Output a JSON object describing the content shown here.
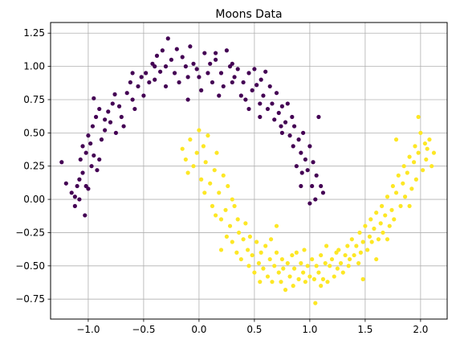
{
  "chart_data": {
    "type": "scatter",
    "title": "Moons Data",
    "xlabel": "",
    "ylabel": "",
    "xlim": [
      -1.34,
      2.24
    ],
    "ylim": [
      -0.9,
      1.33
    ],
    "x_ticks": [
      -1.0,
      -0.5,
      0.0,
      0.5,
      1.0,
      1.5,
      2.0
    ],
    "x_tick_labels": [
      "−1.0",
      "−0.5",
      "0.0",
      "0.5",
      "1.0",
      "1.5",
      "2.0"
    ],
    "y_ticks": [
      -0.75,
      -0.5,
      -0.25,
      0.0,
      0.25,
      0.5,
      0.75,
      1.0,
      1.25
    ],
    "y_tick_labels": [
      "−0.75",
      "−0.50",
      "−0.25",
      "0.00",
      "0.25",
      "0.50",
      "0.75",
      "1.00",
      "1.25"
    ],
    "grid": true,
    "legend": "none",
    "series": [
      {
        "color": "#440154",
        "points": [
          [
            -1.24,
            0.28
          ],
          [
            -1.2,
            0.12
          ],
          [
            -1.15,
            0.05
          ],
          [
            -1.12,
            0.02
          ],
          [
            -1.08,
            0.0
          ],
          [
            -1.12,
            -0.05
          ],
          [
            -1.02,
            0.1
          ],
          [
            -1.05,
            0.2
          ],
          [
            -1.1,
            0.1
          ],
          [
            -1.03,
            -0.12
          ],
          [
            -1.0,
            0.08
          ],
          [
            -1.07,
            0.3
          ],
          [
            -1.02,
            0.35
          ],
          [
            -0.98,
            0.42
          ],
          [
            -1.0,
            0.48
          ],
          [
            -0.95,
            0.33
          ],
          [
            -0.97,
            0.25
          ],
          [
            -1.05,
            0.4
          ],
          [
            -0.92,
            0.22
          ],
          [
            -0.9,
            0.3
          ],
          [
            -0.96,
            0.55
          ],
          [
            -0.93,
            0.62
          ],
          [
            -0.9,
            0.68
          ],
          [
            -0.95,
            0.76
          ],
          [
            -0.88,
            0.45
          ],
          [
            -0.85,
            0.52
          ],
          [
            -0.8,
            0.58
          ],
          [
            -0.82,
            0.66
          ],
          [
            -0.78,
            0.72
          ],
          [
            -0.76,
            0.79
          ],
          [
            -0.72,
            0.7
          ],
          [
            -0.7,
            0.62
          ],
          [
            -0.75,
            0.5
          ],
          [
            -0.68,
            0.55
          ],
          [
            -0.65,
            0.8
          ],
          [
            -0.62,
            0.88
          ],
          [
            -0.6,
            0.75
          ],
          [
            -0.58,
            0.68
          ],
          [
            -0.55,
            0.85
          ],
          [
            -0.52,
            0.92
          ],
          [
            -0.5,
            0.78
          ],
          [
            -0.48,
            0.95
          ],
          [
            -0.45,
            0.88
          ],
          [
            -0.42,
            1.02
          ],
          [
            -0.4,
            0.9
          ],
          [
            -0.38,
            1.08
          ],
          [
            -0.35,
            0.96
          ],
          [
            -0.33,
            1.12
          ],
          [
            -0.3,
            1.0
          ],
          [
            -0.28,
            1.21
          ],
          [
            -0.25,
            1.05
          ],
          [
            -0.22,
            0.95
          ],
          [
            -0.2,
            1.13
          ],
          [
            -0.18,
            0.88
          ],
          [
            -0.15,
            1.07
          ],
          [
            -0.12,
            1.0
          ],
          [
            -0.1,
            0.92
          ],
          [
            -0.08,
            1.15
          ],
          [
            -0.05,
            1.02
          ],
          [
            -0.02,
            0.98
          ],
          [
            0.0,
            0.92
          ],
          [
            0.02,
            0.82
          ],
          [
            0.05,
            1.1
          ],
          [
            0.08,
            0.95
          ],
          [
            0.1,
            1.02
          ],
          [
            0.12,
            0.88
          ],
          [
            0.15,
            1.05
          ],
          [
            0.18,
            0.78
          ],
          [
            0.2,
            0.95
          ],
          [
            0.22,
            0.85
          ],
          [
            0.25,
            1.12
          ],
          [
            0.28,
            1.0
          ],
          [
            0.3,
            0.88
          ],
          [
            0.32,
            0.92
          ],
          [
            0.35,
            0.98
          ],
          [
            0.38,
            0.78
          ],
          [
            0.4,
            0.88
          ],
          [
            0.42,
            0.75
          ],
          [
            0.45,
            0.95
          ],
          [
            0.48,
            0.82
          ],
          [
            0.5,
            0.98
          ],
          [
            0.52,
            0.86
          ],
          [
            0.55,
            0.72
          ],
          [
            0.56,
            0.9
          ],
          [
            0.58,
            0.78
          ],
          [
            0.6,
            0.96
          ],
          [
            0.62,
            0.68
          ],
          [
            0.64,
            0.85
          ],
          [
            0.66,
            0.72
          ],
          [
            0.68,
            0.6
          ],
          [
            0.7,
            0.8
          ],
          [
            0.72,
            0.65
          ],
          [
            0.74,
            0.55
          ],
          [
            0.75,
            0.7
          ],
          [
            0.78,
            0.58
          ],
          [
            0.8,
            0.72
          ],
          [
            0.82,
            0.48
          ],
          [
            0.84,
            0.62
          ],
          [
            0.85,
            0.4
          ],
          [
            0.86,
            0.55
          ],
          [
            0.88,
            0.25
          ],
          [
            0.9,
            0.45
          ],
          [
            0.92,
            0.35
          ],
          [
            0.93,
            0.2
          ],
          [
            0.94,
            0.5
          ],
          [
            0.96,
            0.3
          ],
          [
            0.98,
            0.22
          ],
          [
            1.0,
            0.4
          ],
          [
            1.02,
            0.1
          ],
          [
            1.03,
            0.28
          ],
          [
            1.05,
            0.0
          ],
          [
            1.06,
            0.18
          ],
          [
            1.08,
            0.62
          ],
          [
            1.1,
            0.1
          ],
          [
            1.12,
            0.05
          ],
          [
            -0.3,
            0.85
          ],
          [
            -0.1,
            0.75
          ],
          [
            0.3,
            1.02
          ],
          [
            0.55,
            0.62
          ],
          [
            -0.6,
            0.95
          ],
          [
            -0.85,
            0.6
          ],
          [
            -1.08,
            0.15
          ],
          [
            0.75,
            0.5
          ],
          [
            0.92,
            0.1
          ],
          [
            1.0,
            -0.03
          ],
          [
            -0.4,
            1.0
          ],
          [
            0.15,
            1.1
          ],
          [
            0.45,
            0.68
          ]
        ]
      },
      {
        "color": "#fde725",
        "points": [
          [
            -0.15,
            0.38
          ],
          [
            -0.12,
            0.3
          ],
          [
            -0.1,
            0.2
          ],
          [
            -0.08,
            0.45
          ],
          [
            -0.05,
            0.25
          ],
          [
            -0.02,
            0.35
          ],
          [
            0.0,
            0.52
          ],
          [
            0.02,
            0.15
          ],
          [
            0.04,
            0.4
          ],
          [
            0.05,
            0.05
          ],
          [
            0.06,
            0.28
          ],
          [
            0.08,
            0.48
          ],
          [
            0.1,
            0.12
          ],
          [
            0.12,
            -0.05
          ],
          [
            0.14,
            0.22
          ],
          [
            0.15,
            -0.12
          ],
          [
            0.16,
            0.35
          ],
          [
            0.18,
            0.05
          ],
          [
            0.2,
            -0.15
          ],
          [
            0.22,
            0.18
          ],
          [
            0.24,
            -0.08
          ],
          [
            0.25,
            -0.28
          ],
          [
            0.26,
            0.1
          ],
          [
            0.28,
            -0.2
          ],
          [
            0.3,
            -0.32
          ],
          [
            0.32,
            -0.05
          ],
          [
            0.34,
            -0.4
          ],
          [
            0.35,
            -0.15
          ],
          [
            0.36,
            -0.25
          ],
          [
            0.38,
            -0.45
          ],
          [
            0.4,
            -0.3
          ],
          [
            0.42,
            -0.18
          ],
          [
            0.44,
            -0.38
          ],
          [
            0.45,
            -0.5
          ],
          [
            0.46,
            -0.28
          ],
          [
            0.48,
            -0.42
          ],
          [
            0.5,
            -0.55
          ],
          [
            0.52,
            -0.32
          ],
          [
            0.54,
            -0.48
          ],
          [
            0.55,
            -0.62
          ],
          [
            0.56,
            -0.4
          ],
          [
            0.58,
            -0.52
          ],
          [
            0.6,
            -0.35
          ],
          [
            0.62,
            -0.58
          ],
          [
            0.64,
            -0.45
          ],
          [
            0.65,
            -0.3
          ],
          [
            0.66,
            -0.62
          ],
          [
            0.68,
            -0.5
          ],
          [
            0.7,
            -0.4
          ],
          [
            0.72,
            -0.55
          ],
          [
            0.74,
            -0.62
          ],
          [
            0.75,
            -0.45
          ],
          [
            0.76,
            -0.52
          ],
          [
            0.78,
            -0.68
          ],
          [
            0.8,
            -0.48
          ],
          [
            0.82,
            -0.58
          ],
          [
            0.84,
            -0.42
          ],
          [
            0.85,
            -0.65
          ],
          [
            0.86,
            -0.52
          ],
          [
            0.88,
            -0.4
          ],
          [
            0.9,
            -0.6
          ],
          [
            0.92,
            -0.48
          ],
          [
            0.94,
            -0.55
          ],
          [
            0.95,
            -0.38
          ],
          [
            0.96,
            -0.62
          ],
          [
            0.98,
            -0.5
          ],
          [
            1.0,
            -0.58
          ],
          [
            1.02,
            -0.45
          ],
          [
            1.04,
            -0.6
          ],
          [
            1.05,
            -0.78
          ],
          [
            1.06,
            -0.5
          ],
          [
            1.08,
            -0.55
          ],
          [
            1.1,
            -0.42
          ],
          [
            1.12,
            -0.6
          ],
          [
            1.14,
            -0.48
          ],
          [
            1.15,
            -0.35
          ],
          [
            1.16,
            -0.62
          ],
          [
            1.18,
            -0.5
          ],
          [
            1.2,
            -0.45
          ],
          [
            1.22,
            -0.58
          ],
          [
            1.24,
            -0.4
          ],
          [
            1.25,
            -0.52
          ],
          [
            1.26,
            -0.38
          ],
          [
            1.28,
            -0.48
          ],
          [
            1.3,
            -0.55
          ],
          [
            1.32,
            -0.42
          ],
          [
            1.34,
            -0.35
          ],
          [
            1.35,
            -0.5
          ],
          [
            1.36,
            -0.45
          ],
          [
            1.38,
            -0.3
          ],
          [
            1.4,
            -0.42
          ],
          [
            1.42,
            -0.35
          ],
          [
            1.44,
            -0.48
          ],
          [
            1.45,
            -0.25
          ],
          [
            1.46,
            -0.4
          ],
          [
            1.48,
            -0.32
          ],
          [
            1.5,
            -0.2
          ],
          [
            1.52,
            -0.38
          ],
          [
            1.54,
            -0.28
          ],
          [
            1.55,
            -0.15
          ],
          [
            1.56,
            -0.32
          ],
          [
            1.58,
            -0.22
          ],
          [
            1.6,
            -0.1
          ],
          [
            1.62,
            -0.3
          ],
          [
            1.64,
            -0.18
          ],
          [
            1.65,
            -0.05
          ],
          [
            1.66,
            -0.25
          ],
          [
            1.68,
            -0.12
          ],
          [
            1.7,
            0.02
          ],
          [
            1.72,
            -0.2
          ],
          [
            1.74,
            -0.08
          ],
          [
            1.75,
            0.1
          ],
          [
            1.76,
            -0.15
          ],
          [
            1.78,
            0.05
          ],
          [
            1.8,
            0.18
          ],
          [
            1.82,
            -0.05
          ],
          [
            1.84,
            0.12
          ],
          [
            1.85,
            0.25
          ],
          [
            1.86,
            0.02
          ],
          [
            1.88,
            0.2
          ],
          [
            1.9,
            0.32
          ],
          [
            1.92,
            0.08
          ],
          [
            1.94,
            0.28
          ],
          [
            1.95,
            0.4
          ],
          [
            1.96,
            0.15
          ],
          [
            1.98,
            0.35
          ],
          [
            2.0,
            0.5
          ],
          [
            2.02,
            0.22
          ],
          [
            2.04,
            0.42
          ],
          [
            2.05,
            0.3
          ],
          [
            2.06,
            0.38
          ],
          [
            2.08,
            0.45
          ],
          [
            2.1,
            0.25
          ],
          [
            2.12,
            0.35
          ],
          [
            1.98,
            0.62
          ],
          [
            1.78,
            0.45
          ],
          [
            1.9,
            -0.05
          ],
          [
            1.7,
            -0.3
          ],
          [
            1.6,
            -0.45
          ],
          [
            0.7,
            -0.2
          ],
          [
            0.3,
            0.0
          ],
          [
            0.2,
            -0.38
          ],
          [
            1.48,
            -0.6
          ],
          [
            1.1,
            -0.65
          ]
        ]
      }
    ]
  }
}
